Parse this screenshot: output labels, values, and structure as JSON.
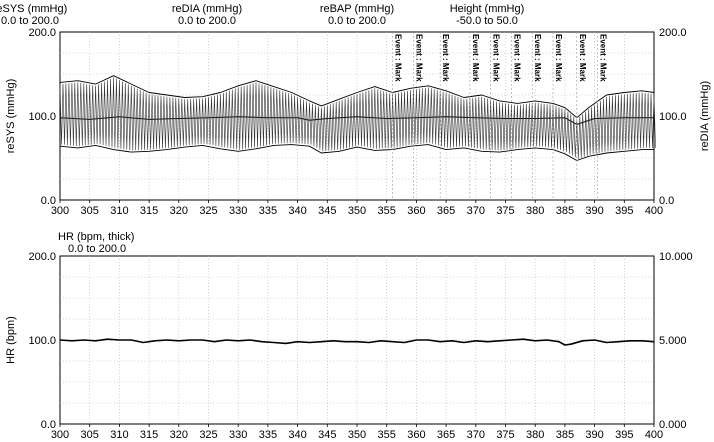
{
  "chart_data": [
    {
      "type": "line",
      "header_labels": [
        {
          "name": "reSYS (mmHg)",
          "range": "0.0 to 200.0"
        },
        {
          "name": "reDIA (mmHg)",
          "range": "0.0 to 200.0"
        },
        {
          "name": "reBAP (mmHg)",
          "range": "0.0 to 200.0"
        },
        {
          "name": "Height (mmHg)",
          "range": "-50.0 to 50.0"
        }
      ],
      "ylabel": "reSYS (mmHg)",
      "ylabel_right": "reDIA (mmHg)",
      "xlim": [
        300,
        400
      ],
      "ylim": [
        0,
        200
      ],
      "ylim_right": [
        0,
        200
      ],
      "x_ticks": [
        "300",
        "305",
        "310",
        "315",
        "320",
        "325",
        "330",
        "335",
        "340",
        "345",
        "350",
        "355",
        "360",
        "365",
        "370",
        "375",
        "380",
        "385",
        "390",
        "395",
        "400"
      ],
      "y_ticks": [
        "0.0",
        "100.0",
        "200.0"
      ],
      "y_ticks_right": [
        "0.0",
        "100.0",
        "200.0"
      ],
      "annotations": [
        {
          "x": 356.0,
          "text": "Event : Mark"
        },
        {
          "x": 359.5,
          "text": "Event : Mark"
        },
        {
          "x": 364.0,
          "text": "Event : Mark"
        },
        {
          "x": 369.0,
          "text": "Event : Mark"
        },
        {
          "x": 372.5,
          "text": "Event : Mark"
        },
        {
          "x": 376.0,
          "text": "Event : Mark"
        },
        {
          "x": 379.5,
          "text": "Event : Mark"
        },
        {
          "x": 383.0,
          "text": "Event : Mark"
        },
        {
          "x": 387.0,
          "text": "Event : Mark"
        },
        {
          "x": 390.5,
          "text": "Event : Mark"
        }
      ],
      "series": [
        {
          "x": [
            300,
            303,
            306,
            309,
            312,
            315,
            318,
            321,
            324,
            327,
            330,
            333,
            336,
            339,
            342,
            344,
            347,
            350,
            353,
            356,
            359,
            362,
            365,
            368,
            371,
            374,
            377,
            380,
            383,
            385,
            387,
            389,
            392,
            395,
            398,
            400
          ],
          "values": [
            140,
            142,
            138,
            148,
            138,
            128,
            125,
            122,
            123,
            128,
            136,
            142,
            135,
            128,
            118,
            112,
            120,
            128,
            135,
            128,
            133,
            136,
            130,
            122,
            125,
            118,
            115,
            118,
            115,
            110,
            98,
            110,
            125,
            128,
            130,
            128
          ]
        },
        {
          "x": [
            300,
            303,
            306,
            309,
            312,
            315,
            318,
            321,
            324,
            327,
            330,
            333,
            336,
            339,
            342,
            344,
            347,
            350,
            353,
            356,
            359,
            362,
            365,
            368,
            371,
            374,
            377,
            380,
            383,
            385,
            387,
            389,
            392,
            395,
            398,
            400
          ],
          "values": [
            64,
            62,
            65,
            60,
            57,
            58,
            60,
            63,
            65,
            61,
            58,
            61,
            65,
            66,
            64,
            56,
            58,
            63,
            59,
            60,
            64,
            66,
            60,
            62,
            58,
            57,
            60,
            62,
            60,
            55,
            47,
            52,
            56,
            58,
            60,
            60
          ]
        },
        {
          "x": [
            300,
            305,
            310,
            315,
            320,
            325,
            330,
            335,
            340,
            342,
            345,
            350,
            355,
            360,
            365,
            370,
            375,
            380,
            385,
            387,
            390,
            395,
            400
          ],
          "values": [
            98,
            96,
            99,
            96,
            97,
            98,
            99,
            98,
            98,
            95,
            97,
            99,
            97,
            98,
            99,
            98,
            97,
            97,
            98,
            90,
            97,
            98,
            98
          ]
        }
      ]
    },
    {
      "type": "line",
      "header_labels": [
        {
          "name": "HR (bpm, thick)",
          "range": "0.0 to 200.0"
        }
      ],
      "ylabel": "HR (bpm)",
      "xlim": [
        300,
        400
      ],
      "ylim": [
        0,
        200
      ],
      "ylim_right": [
        0,
        10
      ],
      "x_ticks": [
        "300",
        "305",
        "310",
        "315",
        "320",
        "325",
        "330",
        "335",
        "340",
        "345",
        "350",
        "355",
        "360",
        "365",
        "370",
        "375",
        "380",
        "385",
        "390",
        "395",
        "400"
      ],
      "y_ticks": [
        "0.0",
        "100.0",
        "200.0"
      ],
      "y_ticks_right": [
        "0.000",
        "5.000",
        "10.000"
      ],
      "series": [
        {
          "x": [
            300,
            302,
            304,
            306,
            308,
            310,
            312,
            314,
            316,
            318,
            320,
            322,
            324,
            326,
            328,
            330,
            332,
            334,
            336,
            338,
            340,
            342,
            344,
            346,
            348,
            350,
            352,
            354,
            356,
            358,
            360,
            362,
            364,
            366,
            368,
            370,
            372,
            374,
            376,
            378,
            380,
            382,
            384,
            385,
            386,
            388,
            390,
            392,
            394,
            396,
            398,
            400
          ],
          "values": [
            100,
            99,
            100,
            99,
            101,
            100,
            100,
            97,
            99,
            100,
            99,
            100,
            100,
            98,
            100,
            99,
            100,
            98,
            97,
            96,
            98,
            97,
            98,
            99,
            98,
            98,
            97,
            99,
            98,
            97,
            100,
            100,
            98,
            99,
            97,
            99,
            98,
            99,
            100,
            101,
            99,
            100,
            98,
            94,
            95,
            99,
            100,
            97,
            98,
            99,
            99,
            98
          ]
        }
      ]
    }
  ]
}
